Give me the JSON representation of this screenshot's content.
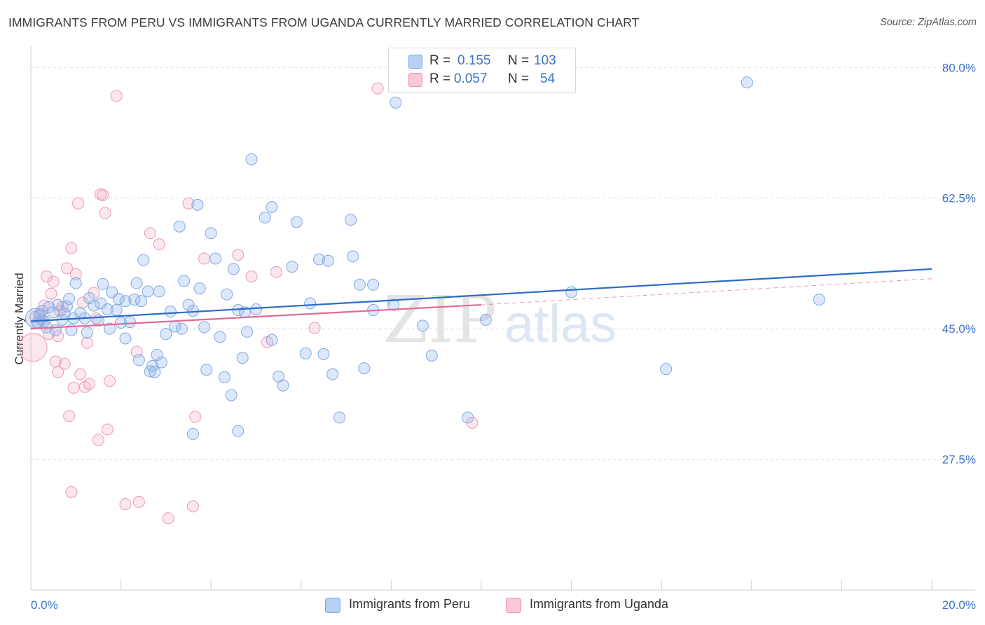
{
  "title": "IMMIGRANTS FROM PERU VS IMMIGRANTS FROM UGANDA CURRENTLY MARRIED CORRELATION CHART",
  "source": "Source: ZipAtlas.com",
  "watermark": {
    "zip": "ZIP",
    "atlas": "atlas"
  },
  "legend": {
    "r_label": "R =",
    "n_label": "N =",
    "series": [
      {
        "name": "Immigrants from Peru",
        "r": "0.155",
        "n": "103",
        "fill": "#b8d0f4",
        "stroke": "#7aa6e6"
      },
      {
        "name": "Immigrants from Uganda",
        "r": "0.057",
        "n": "54",
        "fill": "#fac8d8",
        "stroke": "#ee93b1"
      }
    ]
  },
  "colors": {
    "peru_point_fill": "rgba(140,180,235,0.30)",
    "peru_point_stroke": "#7fa9e3",
    "peru_line": "#2b6cc9",
    "uganda_point_fill": "rgba(245,160,190,0.25)",
    "uganda_point_stroke": "#ec9ab6",
    "uganda_line": "#e36a96",
    "axis_label": "#3a73c8",
    "grid": "#e1e1e1"
  },
  "chart_data": {
    "type": "scatter",
    "title": "IMMIGRANTS FROM PERU VS IMMIGRANTS FROM UGANDA CURRENTLY MARRIED CORRELATION CHART",
    "xlabel": "",
    "ylabel": "Currently Married",
    "xlim": [
      0,
      20
    ],
    "ylim": [
      10,
      82
    ],
    "x_ticks": [
      0,
      2,
      4,
      6,
      8,
      10,
      12,
      14,
      16,
      18,
      20
    ],
    "x_tick_labels": {
      "0": "0.0%",
      "20": "20.0%"
    },
    "y_ticks": [
      27.5,
      45.0,
      62.5,
      80.0
    ],
    "y_tick_labels": [
      "27.5%",
      "45.0%",
      "62.5%",
      "80.0%"
    ],
    "grid": true,
    "legend_position": "top-center",
    "series": [
      {
        "name": "Immigrants from Peru",
        "r": 0.155,
        "n": 103,
        "trend": {
          "x": [
            0,
            20
          ],
          "y": [
            46.0,
            53.0
          ]
        },
        "points": [
          [
            0.1,
            46.4
          ],
          [
            0.15,
            45.8
          ],
          [
            0.2,
            46.8
          ],
          [
            0.25,
            47.4
          ],
          [
            0.3,
            46.0
          ],
          [
            0.35,
            45.2
          ],
          [
            0.4,
            47.9
          ],
          [
            0.5,
            47.2
          ],
          [
            0.55,
            44.8
          ],
          [
            0.6,
            48.2
          ],
          [
            0.7,
            46.2
          ],
          [
            0.75,
            47.0
          ],
          [
            0.8,
            48.0
          ],
          [
            0.85,
            49.0
          ],
          [
            0.9,
            44.8
          ],
          [
            0.95,
            46.4
          ],
          [
            1.0,
            51.1
          ],
          [
            1.1,
            47.1
          ],
          [
            1.2,
            46.4
          ],
          [
            1.25,
            44.5
          ],
          [
            1.3,
            49.1
          ],
          [
            1.4,
            48.1
          ],
          [
            1.5,
            46.1
          ],
          [
            1.55,
            48.4
          ],
          [
            1.6,
            51.0
          ],
          [
            1.7,
            47.6
          ],
          [
            1.75,
            45.0
          ],
          [
            1.8,
            49.9
          ],
          [
            1.9,
            47.5
          ],
          [
            1.95,
            49.0
          ],
          [
            2.0,
            45.8
          ],
          [
            2.1,
            48.7
          ],
          [
            2.1,
            43.7
          ],
          [
            2.2,
            45.9
          ],
          [
            2.3,
            48.9
          ],
          [
            2.35,
            51.1
          ],
          [
            2.4,
            40.8
          ],
          [
            2.45,
            48.7
          ],
          [
            2.5,
            54.2
          ],
          [
            2.6,
            50.0
          ],
          [
            2.65,
            39.3
          ],
          [
            2.7,
            40.0
          ],
          [
            2.75,
            39.2
          ],
          [
            2.8,
            41.5
          ],
          [
            2.85,
            50.0
          ],
          [
            2.9,
            40.5
          ],
          [
            3.0,
            44.3
          ],
          [
            3.1,
            47.3
          ],
          [
            3.2,
            45.3
          ],
          [
            3.3,
            58.7
          ],
          [
            3.35,
            45.0
          ],
          [
            3.4,
            51.4
          ],
          [
            3.5,
            48.2
          ],
          [
            3.6,
            47.4
          ],
          [
            3.7,
            61.6
          ],
          [
            3.75,
            50.4
          ],
          [
            3.85,
            45.2
          ],
          [
            3.9,
            39.5
          ],
          [
            4.0,
            57.8
          ],
          [
            4.1,
            54.4
          ],
          [
            4.2,
            43.9
          ],
          [
            4.3,
            38.5
          ],
          [
            4.35,
            49.6
          ],
          [
            4.45,
            36.1
          ],
          [
            4.5,
            53.0
          ],
          [
            4.6,
            47.5
          ],
          [
            4.7,
            41.1
          ],
          [
            4.75,
            47.2
          ],
          [
            4.8,
            44.6
          ],
          [
            4.9,
            67.7
          ],
          [
            5.0,
            47.6
          ],
          [
            5.2,
            59.9
          ],
          [
            5.35,
            61.3
          ],
          [
            5.5,
            38.6
          ],
          [
            5.6,
            37.4
          ],
          [
            5.8,
            53.3
          ],
          [
            5.9,
            59.3
          ],
          [
            6.1,
            41.7
          ],
          [
            6.2,
            48.4
          ],
          [
            6.4,
            54.3
          ],
          [
            6.5,
            41.6
          ],
          [
            6.6,
            54.1
          ],
          [
            6.7,
            38.9
          ],
          [
            6.85,
            33.1
          ],
          [
            7.1,
            59.6
          ],
          [
            7.15,
            54.7
          ],
          [
            7.3,
            50.9
          ],
          [
            7.4,
            39.7
          ],
          [
            7.6,
            50.9
          ],
          [
            8.7,
            45.4
          ],
          [
            8.9,
            41.4
          ],
          [
            9.7,
            33.1
          ],
          [
            10.1,
            46.2
          ],
          [
            12.0,
            49.9
          ],
          [
            14.1,
            39.6
          ],
          [
            15.9,
            78.0
          ],
          [
            17.5,
            48.9
          ],
          [
            8.1,
            75.3
          ],
          [
            8.05,
            48.2
          ],
          [
            4.6,
            31.3
          ],
          [
            3.6,
            30.9
          ],
          [
            5.35,
            43.5
          ],
          [
            7.6,
            47.5
          ]
        ]
      },
      {
        "name": "Immigrants from Uganda",
        "r": 0.057,
        "n": 54,
        "trend": {
          "x": [
            0,
            10
          ],
          "y": [
            45.0,
            48.2
          ]
        },
        "trend_extension": {
          "x": [
            10,
            20
          ],
          "y": [
            48.2,
            51.7
          ]
        },
        "points": [
          [
            0.05,
            42.5
          ],
          [
            0.1,
            46.6
          ],
          [
            0.15,
            45.8
          ],
          [
            0.2,
            47.0
          ],
          [
            0.25,
            46.2
          ],
          [
            0.3,
            48.1
          ],
          [
            0.4,
            44.3
          ],
          [
            0.45,
            49.7
          ],
          [
            0.5,
            51.3
          ],
          [
            0.55,
            40.6
          ],
          [
            0.6,
            39.2
          ],
          [
            0.65,
            47.4
          ],
          [
            0.7,
            47.9
          ],
          [
            0.75,
            40.3
          ],
          [
            0.8,
            53.1
          ],
          [
            0.85,
            33.3
          ],
          [
            0.9,
            55.8
          ],
          [
            0.95,
            37.1
          ],
          [
            1.0,
            52.3
          ],
          [
            1.05,
            61.8
          ],
          [
            1.1,
            38.9
          ],
          [
            1.15,
            48.5
          ],
          [
            1.2,
            37.2
          ],
          [
            1.25,
            43.1
          ],
          [
            1.3,
            37.6
          ],
          [
            1.4,
            49.8
          ],
          [
            1.45,
            46.4
          ],
          [
            1.5,
            30.1
          ],
          [
            1.55,
            63.0
          ],
          [
            1.6,
            62.9
          ],
          [
            1.65,
            60.5
          ],
          [
            1.7,
            31.5
          ],
          [
            1.75,
            38.0
          ],
          [
            1.9,
            76.2
          ],
          [
            2.1,
            21.5
          ],
          [
            2.35,
            41.9
          ],
          [
            2.4,
            21.8
          ],
          [
            2.65,
            57.8
          ],
          [
            2.85,
            56.3
          ],
          [
            3.05,
            19.6
          ],
          [
            3.5,
            61.8
          ],
          [
            3.6,
            21.2
          ],
          [
            3.65,
            33.2
          ],
          [
            3.85,
            54.4
          ],
          [
            4.6,
            54.9
          ],
          [
            4.9,
            52.0
          ],
          [
            5.25,
            43.2
          ],
          [
            5.45,
            52.6
          ],
          [
            6.3,
            45.1
          ],
          [
            7.7,
            77.2
          ],
          [
            9.8,
            32.4
          ],
          [
            0.9,
            23.1
          ],
          [
            0.35,
            52.0
          ],
          [
            0.6,
            44.0
          ]
        ]
      }
    ]
  }
}
